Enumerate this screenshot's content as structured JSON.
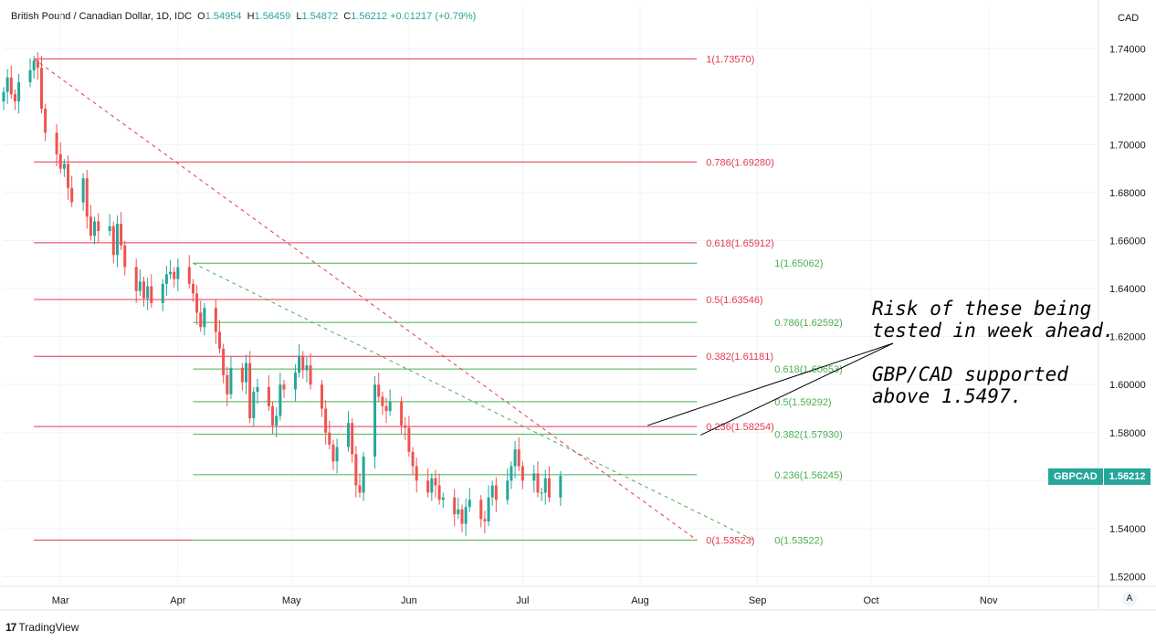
{
  "header": {
    "symbol": "British Pound / Canadian Dollar, 1D, IDC",
    "open_label": "O",
    "open": "1.54954",
    "high_label": "H",
    "high": "1.56459",
    "low_label": "L",
    "low": "1.54872",
    "close_label": "C",
    "close": "1.56212",
    "change": "+0.01217 (+0.79%)"
  },
  "axis_currency": "CAD",
  "price_tag": {
    "symbol": "GBPCAD",
    "value": "1.56212"
  },
  "auto_button": "A",
  "footer": {
    "brand": "TradingView",
    "logo": "17"
  },
  "annotation": {
    "line1": "Risk of these being",
    "line2": "tested in week ahead.",
    "line3": "GBP/CAD supported",
    "line4": "above 1.5497."
  },
  "colors": {
    "up": "#26a69a",
    "down": "#ef5350",
    "fib_red": "#e53950",
    "fib_green": "#4caf50"
  },
  "chart_data": {
    "type": "candlestick",
    "title": "British Pound / Canadian Dollar, 1D, IDC",
    "y_axis_ticks": [
      1.52,
      1.54,
      1.56,
      1.58,
      1.6,
      1.62,
      1.64,
      1.66,
      1.68,
      1.7,
      1.72,
      1.74
    ],
    "ylim": [
      1.516,
      1.758
    ],
    "x_axis_ticks": [
      "Mar",
      "Apr",
      "May",
      "Jun",
      "Jul",
      "Aug",
      "Sep",
      "Oct",
      "Nov"
    ],
    "x_range": [
      "2022-02-14",
      "2022-11-30"
    ],
    "fib_red": [
      {
        "label": "1(1.73570)",
        "value": 1.7357
      },
      {
        "label": "0.786(1.69280)",
        "value": 1.6928
      },
      {
        "label": "0.618(1.65912)",
        "value": 1.65912
      },
      {
        "label": "0.5(1.63546)",
        "value": 1.63546
      },
      {
        "label": "0.382(1.61181)",
        "value": 1.61181
      },
      {
        "label": "0.236(1.58254)",
        "value": 1.58254
      },
      {
        "label": "0(1.53523)",
        "value": 1.53523
      }
    ],
    "fib_green": [
      {
        "label": "1(1.65062)",
        "value": 1.65062
      },
      {
        "label": "0.786(1.62592)",
        "value": 1.62592
      },
      {
        "label": "0.618(1.60653)",
        "value": 1.60653
      },
      {
        "label": "0.5(1.59292)",
        "value": 1.59292
      },
      {
        "label": "0.382(1.57930)",
        "value": 1.5793
      },
      {
        "label": "0.236(1.56245)",
        "value": 1.56245
      },
      {
        "label": "0(1.53522)",
        "value": 1.53522
      }
    ],
    "fib_red_span": [
      "2022-02-22",
      "2022-08-16"
    ],
    "fib_green_span": [
      "2022-04-05",
      "2022-08-16"
    ],
    "trendline_red": {
      "from": [
        "2022-02-22",
        1.7357
      ],
      "to": [
        "2022-08-16",
        1.5352
      ]
    },
    "trendline_green": {
      "from": [
        "2022-04-05",
        1.6506
      ],
      "to": [
        "2022-08-31",
        1.5352
      ]
    },
    "annotation_arrows_to": [
      [
        "2022-08-03",
        1.583
      ],
      [
        "2022-08-17",
        1.579
      ]
    ],
    "candles_start": "2022-02-14",
    "candles_close": [
      1.722,
      1.728,
      1.721,
      1.718,
      1.726,
      1.731,
      1.735,
      1.732,
      1.715,
      1.705,
      1.696,
      1.69,
      1.692,
      1.682,
      1.676,
      1.686,
      1.67,
      1.662,
      1.668,
      1.664,
      1.666,
      1.654,
      1.667,
      1.658,
      1.649,
      1.639,
      1.643,
      1.636,
      1.641,
      1.634,
      1.642,
      1.646,
      1.647,
      1.644,
      1.649,
      1.642,
      1.638,
      1.63,
      1.624,
      1.632,
      1.622,
      1.615,
      1.604,
      1.596,
      1.607,
      1.601,
      1.609,
      1.586,
      1.597,
      1.599,
      1.591,
      1.583,
      1.587,
      1.6,
      1.598,
      1.605,
      1.612,
      1.606,
      1.608,
      1.6,
      1.59,
      1.58,
      1.575,
      1.568,
      1.574,
      1.584,
      1.571,
      1.558,
      1.555,
      1.57,
      1.6,
      1.595,
      1.591,
      1.589,
      1.593,
      1.583,
      1.582,
      1.572,
      1.566,
      1.56,
      1.555,
      1.561,
      1.558,
      1.552,
      1.553,
      1.546,
      1.548,
      1.542,
      1.549,
      1.552,
      1.544,
      1.543,
      1.553,
      1.558,
      1.552,
      1.56,
      1.566,
      1.573,
      1.566,
      1.56,
      1.563,
      1.555,
      1.555,
      1.561,
      1.553,
      1.562
    ]
  }
}
